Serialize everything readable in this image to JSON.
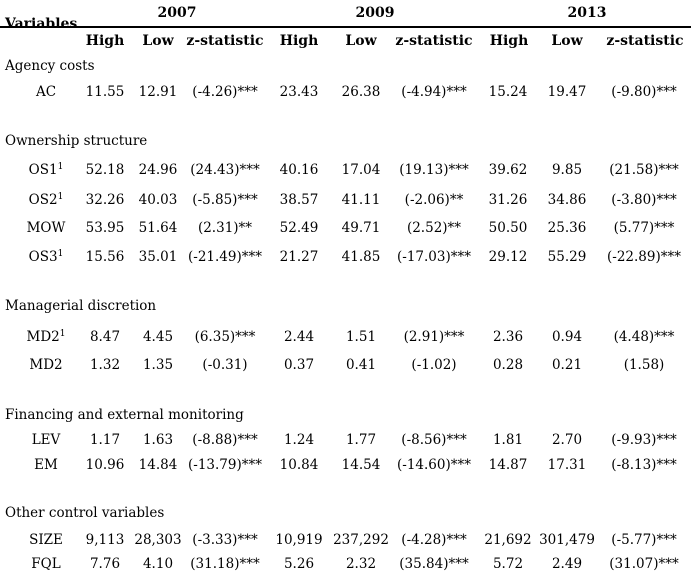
{
  "colors": {
    "text": "#000000",
    "background": "#ffffff"
  },
  "table": {
    "variables_label": "Variables",
    "year_groups": [
      {
        "year": "2007",
        "columns": [
          "High",
          "Low",
          "z-statistic"
        ]
      },
      {
        "year": "2009",
        "columns": [
          "High",
          "Low",
          "z-statistic"
        ]
      },
      {
        "year": "2013",
        "columns": [
          "High",
          "Low",
          "z-statistic"
        ]
      }
    ],
    "sections": [
      {
        "title": "Agency costs",
        "rows": [
          {
            "variable": "AC",
            "sup": "",
            "values": [
              "11.55",
              "12.91",
              "(-4.26)***",
              "23.43",
              "26.38",
              "(-4.94)***",
              "15.24",
              "19.47",
              "(-9.80)***"
            ]
          }
        ]
      },
      {
        "title": "Ownership structure",
        "rows": [
          {
            "variable": "OS1",
            "sup": "1",
            "values": [
              "52.18",
              "24.96",
              "(24.43)***",
              "40.16",
              "17.04",
              "(19.13)***",
              "39.62",
              "9.85",
              "(21.58)***"
            ]
          },
          {
            "variable": "OS2",
            "sup": "1",
            "values": [
              "32.26",
              "40.03",
              "(-5.85)***",
              "38.57",
              "41.11",
              "(-2.06)**",
              "31.26",
              "34.86",
              "(-3.80)***"
            ]
          },
          {
            "variable": "MOW",
            "sup": "",
            "values": [
              "53.95",
              "51.64",
              "(2.31)**",
              "52.49",
              "49.71",
              "(2.52)**",
              "50.50",
              "25.36",
              "(5.77)***"
            ]
          },
          {
            "variable": "OS3",
            "sup": "1",
            "values": [
              "15.56",
              "35.01",
              "(-21.49)***",
              "21.27",
              "41.85",
              "(-17.03)***",
              "29.12",
              "55.29",
              "(-22.89)***"
            ]
          }
        ]
      },
      {
        "title": "Managerial discretion",
        "rows": [
          {
            "variable": "MD2",
            "sup": "1",
            "values": [
              "8.47",
              "4.45",
              "(6.35)***",
              "2.44",
              "1.51",
              "(2.91)***",
              "2.36",
              "0.94",
              "(4.48)***"
            ]
          },
          {
            "variable": "MD2",
            "sup": "",
            "values": [
              "1.32",
              "1.35",
              "(-0.31)",
              "0.37",
              "0.41",
              "(-1.02)",
              "0.28",
              "0.21",
              "(1.58)"
            ]
          }
        ]
      },
      {
        "title": "Financing and external monitoring",
        "rows": [
          {
            "variable": "LEV",
            "sup": "",
            "values": [
              "1.17",
              "1.63",
              "(-8.88)***",
              "1.24",
              "1.77",
              "(-8.56)***",
              "1.81",
              "2.70",
              "(-9.93)***"
            ]
          },
          {
            "variable": "EM",
            "sup": "",
            "values": [
              "10.96",
              "14.84",
              "(-13.79)***",
              "10.84",
              "14.54",
              "(-14.60)***",
              "14.87",
              "17.31",
              "(-8.13)***"
            ]
          }
        ]
      },
      {
        "title": "Other control variables",
        "rows": [
          {
            "variable": "SIZE",
            "sup": "",
            "values": [
              "9,113",
              "28,303",
              "(-3.33)***",
              "10,919",
              "237,292",
              "(-4.28)***",
              "21,692",
              "301,479",
              "(-5.77)***"
            ]
          },
          {
            "variable": "FQL",
            "sup": "",
            "values": [
              "7.76",
              "4.10",
              "(31.18)***",
              "5.26",
              "2.32",
              "(35.84)***",
              "5.72",
              "2.49",
              "(31.07)***"
            ]
          }
        ]
      }
    ]
  }
}
